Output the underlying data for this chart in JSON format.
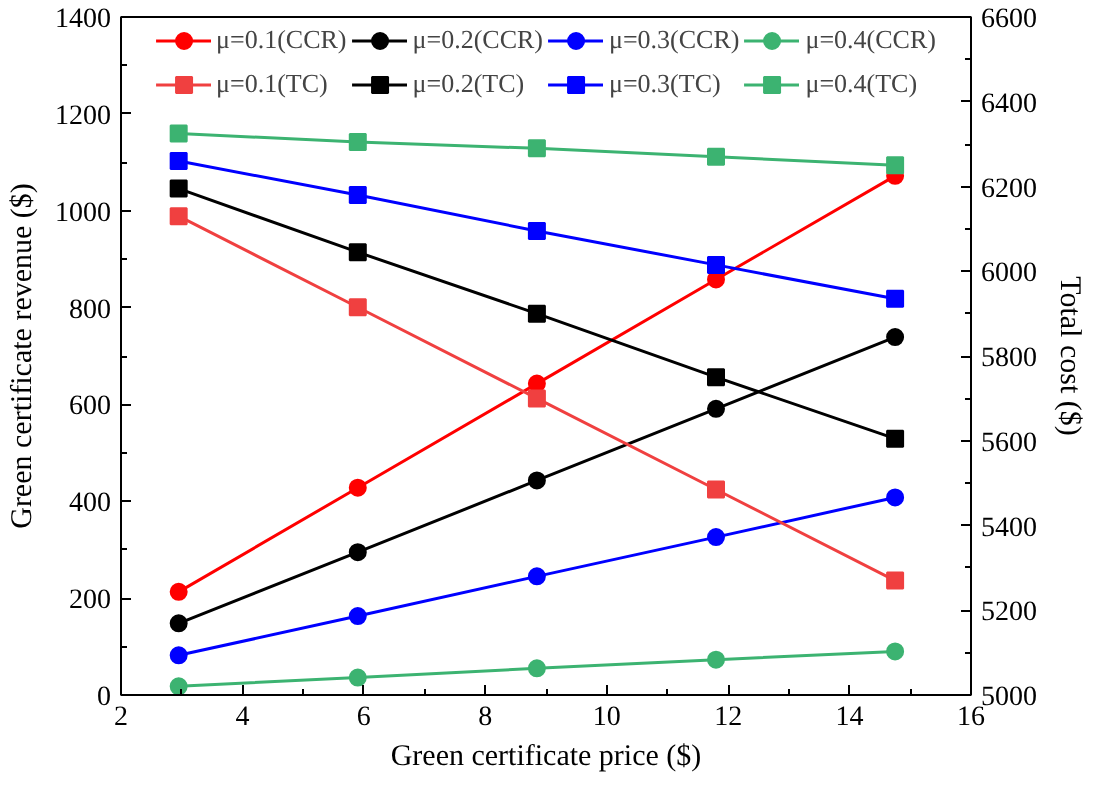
{
  "chart_data": {
    "type": "line",
    "xlabel": "Green certificate price ($)",
    "ylabel": "Green certificate revenue ($)",
    "y2label": "Total cost ($)",
    "x": [
      2.95,
      5.9,
      8.85,
      11.8,
      14.75
    ],
    "xlim": [
      2,
      16
    ],
    "xticks": [
      2,
      4,
      6,
      8,
      10,
      12,
      14,
      16
    ],
    "ylim": [
      0,
      1400
    ],
    "yticks": [
      0,
      200,
      400,
      600,
      800,
      1000,
      1200,
      1400
    ],
    "y2lim": [
      5000,
      6600
    ],
    "y2ticks": [
      5000,
      5200,
      5400,
      5600,
      5800,
      6000,
      6200,
      6400,
      6600
    ],
    "grid": false,
    "legend": "top",
    "line_style": "solid",
    "series": [
      {
        "name": "μ=0.1(CCR)",
        "color": "#ff0000",
        "marker": "circle",
        "values": [
          213,
          428,
          643,
          858,
          1072
        ]
      },
      {
        "name": "μ=0.2(CCR)",
        "color": "#000000",
        "marker": "circle",
        "values": [
          148,
          295,
          443,
          591,
          739
        ]
      },
      {
        "name": "μ=0.3(CCR)",
        "color": "#0000ff",
        "marker": "circle",
        "values": [
          82,
          163,
          245,
          326,
          408
        ]
      },
      {
        "name": "μ=0.4(CCR)",
        "color": "#3cb371",
        "marker": "circle",
        "values": [
          18,
          36,
          55,
          73,
          90
        ]
      },
      {
        "name": "μ=0.1(TC)",
        "color": "#f04040",
        "marker": "square",
        "axis": "y2",
        "values": [
          6130,
          5915,
          5700,
          5485,
          5270
        ]
      },
      {
        "name": "μ=0.2(TC)",
        "color": "#000000",
        "marker": "square",
        "axis": "y2",
        "values": [
          6195,
          6045,
          5900,
          5750,
          5605
        ]
      },
      {
        "name": "μ=0.3(TC)",
        "color": "#0000ff",
        "marker": "square",
        "axis": "y2",
        "values": [
          6260,
          6180,
          6095,
          6015,
          5935
        ]
      },
      {
        "name": "μ=0.4(TC)",
        "color": "#3cb371",
        "marker": "square",
        "axis": "y2",
        "values": [
          6325,
          6305,
          6290,
          6270,
          6250
        ]
      }
    ]
  }
}
